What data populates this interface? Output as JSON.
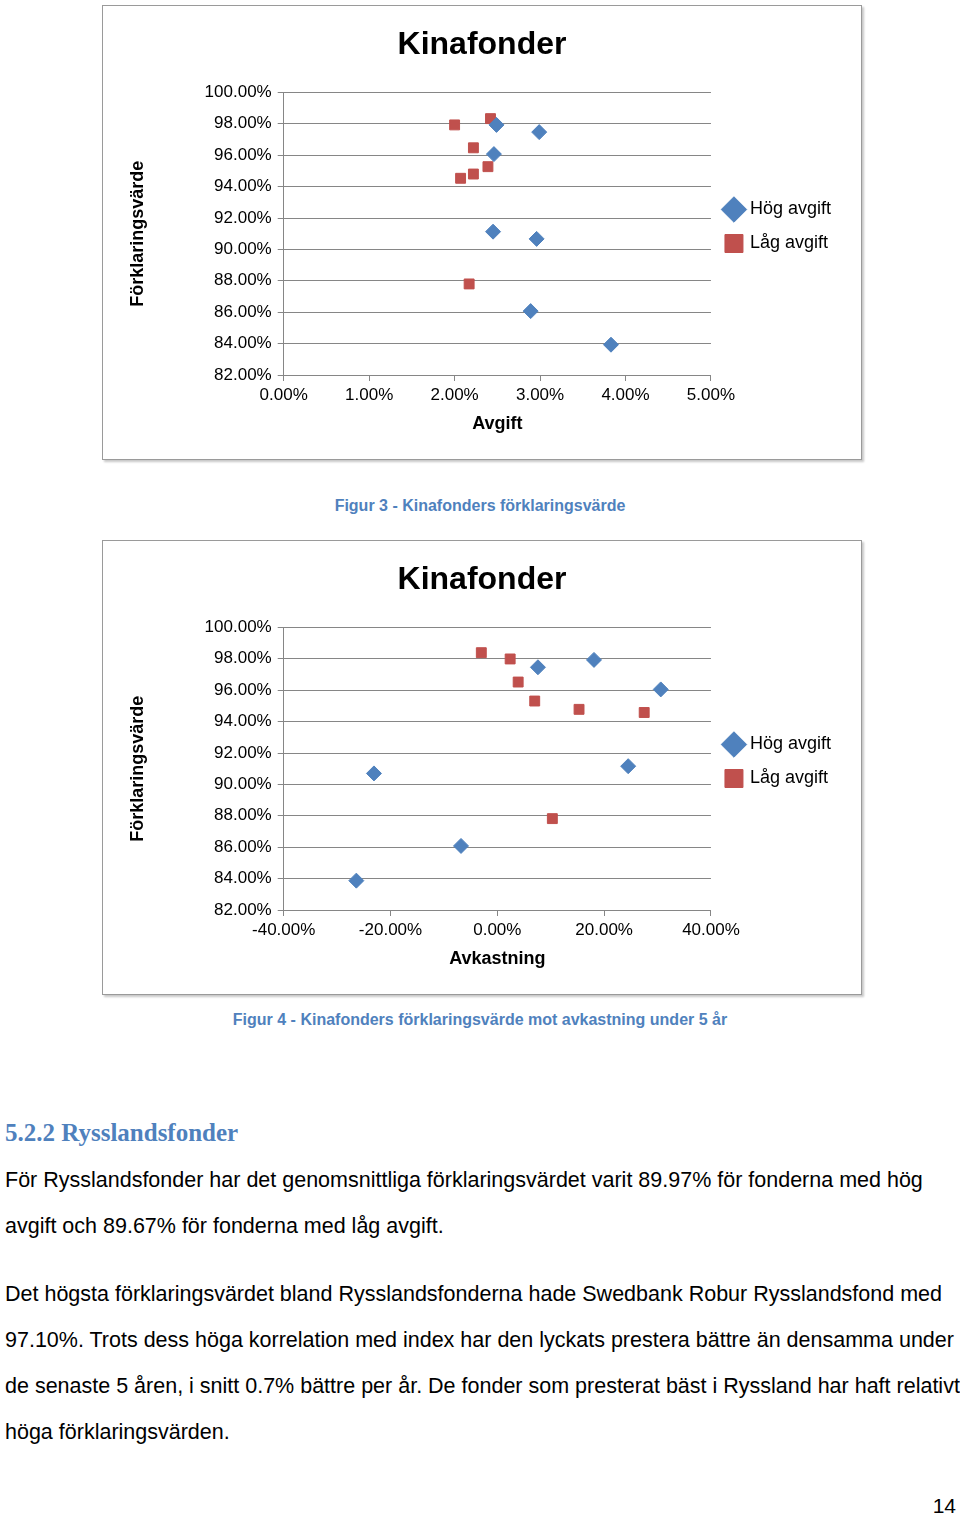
{
  "chart_data": [
    {
      "type": "scatter",
      "title": "Kinafonder",
      "x_label": "Avgift",
      "y_label": "Förklaringsvärde",
      "xlim": [
        0,
        5
      ],
      "xticks": [
        {
          "value": 0,
          "label": "0.00%"
        },
        {
          "value": 1,
          "label": "1.00%"
        },
        {
          "value": 2,
          "label": "2.00%"
        },
        {
          "value": 3,
          "label": "3.00%"
        },
        {
          "value": 4,
          "label": "4.00%"
        },
        {
          "value": 5,
          "label": "5.00%"
        }
      ],
      "ylim": [
        82,
        100
      ],
      "yticks": [
        {
          "value": 82,
          "label": "82.00%"
        },
        {
          "value": 84,
          "label": "84.00%"
        },
        {
          "value": 86,
          "label": "86.00%"
        },
        {
          "value": 88,
          "label": "88.00%"
        },
        {
          "value": 90,
          "label": "90.00%"
        },
        {
          "value": 92,
          "label": "92.00%"
        },
        {
          "value": 94,
          "label": "94.00%"
        },
        {
          "value": 96,
          "label": "96.00%"
        },
        {
          "value": 98,
          "label": "98.00%"
        },
        {
          "value": 100,
          "label": "100.00%"
        }
      ],
      "grid": true,
      "legend": "right",
      "series": [
        {
          "name": "Hög avgift",
          "color": "#4F81BD",
          "marker": "diamond",
          "x": [
            2.49,
            2.99,
            2.46,
            2.45,
            2.96,
            2.89,
            3.83
          ],
          "values": [
            97.93,
            97.47,
            96.07,
            91.13,
            90.67,
            86.07,
            83.93
          ]
        },
        {
          "name": "Låg avgift",
          "color": "#C0504D",
          "marker": "square",
          "x": [
            2.0,
            2.42,
            2.22,
            2.39,
            2.22,
            2.07,
            2.17
          ],
          "values": [
            97.93,
            98.33,
            96.47,
            95.27,
            94.8,
            94.53,
            87.8
          ]
        }
      ]
    },
    {
      "type": "scatter",
      "title": "Kinafonder",
      "x_label": "Avkastning",
      "y_label": "Förklaringsvärde",
      "xlim": [
        -40,
        40
      ],
      "xticks": [
        {
          "value": -40,
          "label": "-40.00%"
        },
        {
          "value": -20,
          "label": "-20.00%"
        },
        {
          "value": 0,
          "label": "0.00%"
        },
        {
          "value": 20,
          "label": "20.00%"
        },
        {
          "value": 40,
          "label": "40.00%"
        }
      ],
      "ylim": [
        82,
        100
      ],
      "yticks": [
        {
          "value": 82,
          "label": "82.00%"
        },
        {
          "value": 84,
          "label": "84.00%"
        },
        {
          "value": 86,
          "label": "86.00%"
        },
        {
          "value": 88,
          "label": "88.00%"
        },
        {
          "value": 90,
          "label": "90.00%"
        },
        {
          "value": 92,
          "label": "92.00%"
        },
        {
          "value": 94,
          "label": "94.00%"
        },
        {
          "value": 96,
          "label": "96.00%"
        },
        {
          "value": 98,
          "label": "98.00%"
        },
        {
          "value": 100,
          "label": "100.00%"
        }
      ],
      "grid": true,
      "legend": "right",
      "series": [
        {
          "name": "Hög avgift",
          "color": "#4F81BD",
          "marker": "diamond",
          "x": [
            7.6,
            18.1,
            30.6,
            24.5,
            -23.1,
            -6.8,
            -26.4
          ],
          "values": [
            97.46,
            97.93,
            96.05,
            91.16,
            90.7,
            86.08,
            83.87
          ]
        },
        {
          "name": "Låg avgift",
          "color": "#C0504D",
          "marker": "square",
          "x": [
            -3.0,
            2.4,
            3.9,
            7.0,
            15.3,
            27.5,
            10.3
          ],
          "values": [
            98.39,
            97.99,
            96.52,
            95.31,
            94.78,
            94.58,
            87.82
          ]
        }
      ]
    }
  ],
  "captions": [
    "Figur 3 - Kinafonders förklaringsvärde",
    "Figur 4 - Kinafonders förklaringsvärde mot avkastning under 5 år"
  ],
  "section": {
    "heading": "5.2.2 Rysslandsfonder",
    "paragraphs": [
      "För Rysslandsfonder har det genomsnittliga förklaringsvärdet varit 89.97% för fonderna med hög avgift och 89.67% för fonderna med låg avgift.",
      "Det högsta förklaringsvärdet bland Rysslandsfonderna hade Swedbank Robur Rysslandsfond med 97.10%. Trots dess höga korrelation med index har den lyckats prestera bättre än densamma under de senaste 5 åren, i snitt 0.7% bättre per år. De fonder som presterat bäst i Ryssland har haft relativt höga förklaringsvärden."
    ]
  },
  "page_number": 14
}
